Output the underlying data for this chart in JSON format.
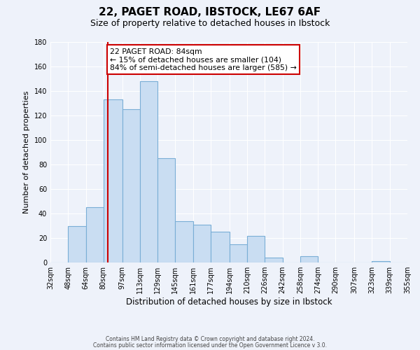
{
  "title": "22, PAGET ROAD, IBSTOCK, LE67 6AF",
  "subtitle": "Size of property relative to detached houses in Ibstock",
  "xlabel": "Distribution of detached houses by size in Ibstock",
  "ylabel": "Number of detached properties",
  "bin_labels": [
    "32sqm",
    "48sqm",
    "64sqm",
    "80sqm",
    "97sqm",
    "113sqm",
    "129sqm",
    "145sqm",
    "161sqm",
    "177sqm",
    "194sqm",
    "210sqm",
    "226sqm",
    "242sqm",
    "258sqm",
    "274sqm",
    "290sqm",
    "307sqm",
    "323sqm",
    "339sqm",
    "355sqm"
  ],
  "bar_values": [
    0,
    30,
    45,
    133,
    125,
    148,
    85,
    34,
    31,
    25,
    15,
    22,
    4,
    0,
    5,
    0,
    0,
    0,
    1,
    0
  ],
  "bin_edges": [
    32,
    48,
    64,
    80,
    97,
    113,
    129,
    145,
    161,
    177,
    194,
    210,
    226,
    242,
    258,
    274,
    290,
    307,
    323,
    339,
    355
  ],
  "bar_color": "#c9ddf2",
  "bar_edge_color": "#7aaed6",
  "vline_x": 84,
  "vline_color": "#cc0000",
  "annotation_title": "22 PAGET ROAD: 84sqm",
  "annotation_line1": "← 15% of detached houses are smaller (104)",
  "annotation_line2": "84% of semi-detached houses are larger (585) →",
  "annotation_box_facecolor": "#ffffff",
  "annotation_box_edgecolor": "#cc0000",
  "ylim": [
    0,
    180
  ],
  "yticks": [
    0,
    20,
    40,
    60,
    80,
    100,
    120,
    140,
    160,
    180
  ],
  "footer1": "Contains HM Land Registry data © Crown copyright and database right 2024.",
  "footer2": "Contains public sector information licensed under the Open Government Licence v 3.0.",
  "bg_color": "#eef2fa",
  "grid_color": "#ffffff",
  "title_fontsize": 11,
  "subtitle_fontsize": 9,
  "ylabel_fontsize": 8,
  "xlabel_fontsize": 8.5,
  "tick_fontsize": 7,
  "footer_fontsize": 5.5,
  "annotation_fontsize": 7.8
}
